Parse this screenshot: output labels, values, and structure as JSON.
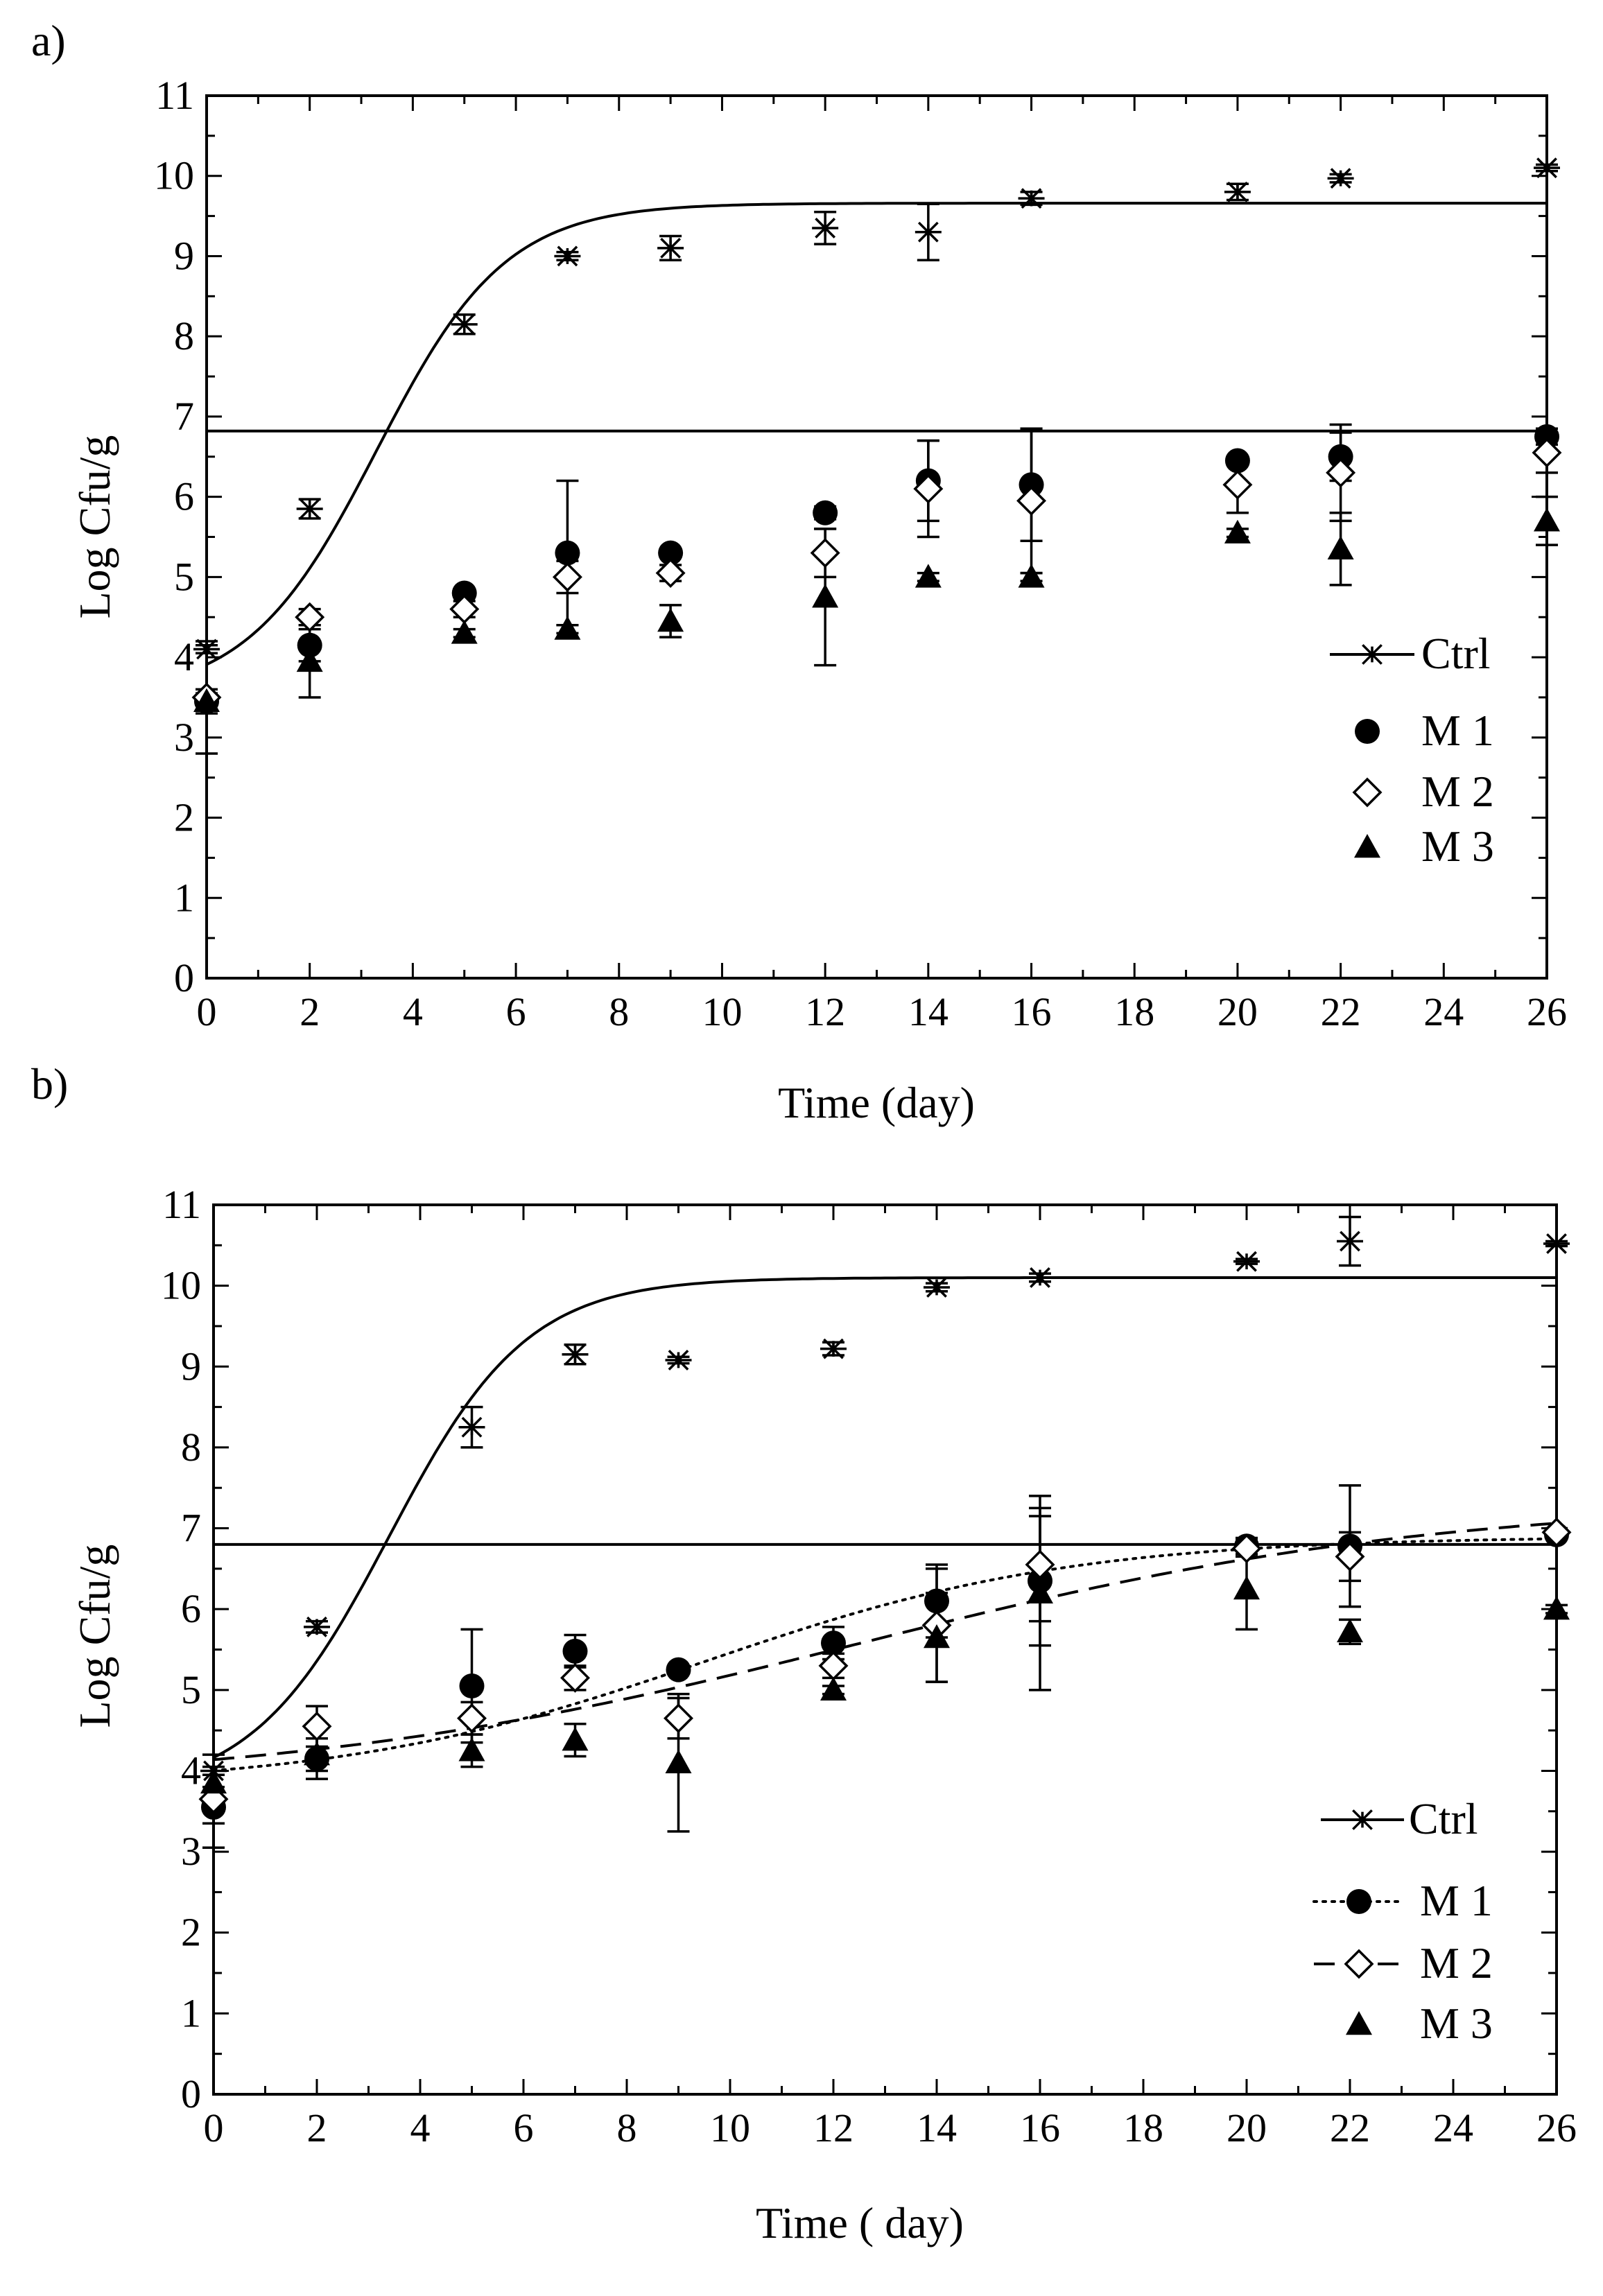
{
  "chart_data": [
    {
      "panel_label": "a)",
      "type": "scatter",
      "xlabel": "Time (day)",
      "ylabel": "Log Cfu/g",
      "xlim": [
        0,
        26
      ],
      "ylim": [
        0,
        11
      ],
      "x_ticks": [
        "0",
        "2",
        "4",
        "6",
        "8",
        "10",
        "12",
        "14",
        "16",
        "18",
        "20",
        "22",
        "24",
        "26"
      ],
      "y_ticks": [
        "0",
        "1",
        "2",
        "3",
        "4",
        "5",
        "6",
        "7",
        "8",
        "9",
        "10",
        "11"
      ],
      "legend": [
        "Ctrl",
        "M 1",
        "M 2",
        "M 3"
      ],
      "series": [
        {
          "name": "Ctrl",
          "marker": "asterisk",
          "x": [
            0,
            2,
            5,
            7,
            9,
            12,
            14,
            16,
            20,
            22,
            26
          ],
          "y": [
            4.1,
            5.85,
            8.15,
            9.0,
            9.1,
            9.35,
            9.3,
            9.72,
            9.8,
            9.97,
            10.1
          ],
          "err": [
            0.05,
            0.12,
            0.12,
            0.05,
            0.15,
            0.2,
            0.35,
            0.08,
            0.1,
            0.05,
            0.04
          ]
        },
        {
          "name": "M 1",
          "marker": "circle",
          "x": [
            0,
            2,
            5,
            7,
            9,
            12,
            14,
            16,
            20,
            22,
            26
          ],
          "y": [
            3.45,
            4.15,
            4.8,
            5.3,
            5.3,
            5.8,
            6.2,
            6.15,
            6.45,
            6.5,
            6.75
          ],
          "err": [
            0.15,
            0.2,
            0.05,
            0.9,
            0.05,
            0.08,
            0.5,
            0.7,
            0.05,
            0.3,
            0.1
          ]
        },
        {
          "name": "M 2",
          "marker": "diamond",
          "x": [
            0,
            2,
            5,
            7,
            9,
            12,
            14,
            16,
            20,
            22,
            26
          ],
          "y": [
            3.5,
            4.5,
            4.6,
            5.0,
            5.05,
            5.3,
            6.1,
            5.95,
            6.15,
            6.3,
            6.55
          ],
          "err": [
            0.7,
            0.1,
            0.1,
            0.2,
            0.1,
            0.3,
            0.6,
            0.9,
            0.35,
            0.6,
            0.25
          ]
        },
        {
          "name": "M 3",
          "marker": "triangle",
          "x": [
            0,
            2,
            5,
            7,
            9,
            12,
            14,
            16,
            20,
            22,
            26
          ],
          "y": [
            3.45,
            3.95,
            4.3,
            4.35,
            4.45,
            4.75,
            5.0,
            5.0,
            5.55,
            5.35,
            5.7
          ],
          "err": [
            0.1,
            0.45,
            0.05,
            0.05,
            0.2,
            0.85,
            0.05,
            0.05,
            0.05,
            0.45,
            0.3
          ]
        }
      ],
      "fits": [
        {
          "name": "Ctrl",
          "style": "solid",
          "model": "logistic",
          "lower": 3.5,
          "upper": 9.66,
          "k": 0.8,
          "x0": 3.3
        },
        {
          "name": "plateau",
          "style": "solid",
          "model": "constant",
          "value": 6.82
        }
      ]
    },
    {
      "panel_label": "b)",
      "type": "scatter",
      "xlabel": "Time ( day)",
      "ylabel": "Log Cfu/g",
      "xlim": [
        0,
        26
      ],
      "ylim": [
        0,
        11
      ],
      "x_ticks": [
        "0",
        "2",
        "4",
        "6",
        "8",
        "10",
        "12",
        "14",
        "16",
        "18",
        "20",
        "22",
        "24",
        "26"
      ],
      "y_ticks": [
        "0",
        "1",
        "2",
        "3",
        "4",
        "5",
        "6",
        "7",
        "8",
        "9",
        "10",
        "11"
      ],
      "legend": [
        "Ctrl",
        "M 1",
        "M 2",
        "M 3"
      ],
      "series": [
        {
          "name": "Ctrl",
          "marker": "asterisk",
          "x": [
            0,
            2,
            5,
            7,
            9,
            12,
            14,
            16,
            20,
            22,
            26
          ],
          "y": [
            4.0,
            5.78,
            8.25,
            9.15,
            9.08,
            9.22,
            9.98,
            10.1,
            10.3,
            10.55,
            10.52
          ],
          "err": [
            0.2,
            0.07,
            0.25,
            0.12,
            0.04,
            0.08,
            0.05,
            0.05,
            0.03,
            0.3,
            0.03
          ]
        },
        {
          "name": "M 1",
          "marker": "circle",
          "x": [
            0,
            2,
            5,
            7,
            9,
            12,
            14,
            16,
            20,
            22,
            26
          ],
          "y": [
            3.55,
            4.15,
            5.05,
            5.48,
            5.25,
            5.58,
            6.1,
            6.35,
            6.78,
            6.78,
            6.92
          ],
          "err": [
            0.5,
            0.25,
            0.7,
            0.2,
            0.05,
            0.2,
            0.45,
            0.8,
            0.1,
            0.75,
            0.05
          ]
        },
        {
          "name": "M 2",
          "marker": "diamond",
          "x": [
            0,
            2,
            5,
            7,
            9,
            12,
            14,
            16,
            20,
            22,
            26
          ],
          "y": [
            3.65,
            4.55,
            4.65,
            5.15,
            4.65,
            5.3,
            5.8,
            6.55,
            6.75,
            6.65,
            6.95
          ],
          "err": [
            0.3,
            0.25,
            0.2,
            0.15,
            0.25,
            0.15,
            0.7,
            0.7,
            0.1,
            0.3,
            0.05
          ]
        },
        {
          "name": "M 3",
          "marker": "triangle",
          "x": [
            0,
            2,
            5,
            7,
            9,
            12,
            14,
            16,
            20,
            22,
            26
          ],
          "y": [
            3.85,
            4.2,
            4.25,
            4.38,
            4.1,
            5.0,
            5.65,
            6.2,
            6.25,
            5.72,
            6.0
          ],
          "err": [
            0.1,
            0.2,
            0.2,
            0.2,
            0.85,
            0.05,
            0.55,
            1.2,
            0.5,
            0.15,
            0.05
          ]
        }
      ],
      "fits": [
        {
          "name": "Ctrl",
          "style": "solid",
          "model": "logistic",
          "lower": 3.7,
          "upper": 10.1,
          "k": 0.75,
          "x0": 3.4
        },
        {
          "name": "plateau",
          "style": "solid",
          "model": "constant",
          "value": 6.8
        },
        {
          "name": "M 1",
          "style": "dotted",
          "model": "logistic",
          "lower": 3.8,
          "upper": 6.9,
          "k": 0.28,
          "x0": 9.5
        },
        {
          "name": "M 2",
          "style": "dashed",
          "model": "logistic",
          "lower": 3.8,
          "upper": 7.35,
          "k": 0.18,
          "x0": 12.5
        }
      ]
    }
  ]
}
